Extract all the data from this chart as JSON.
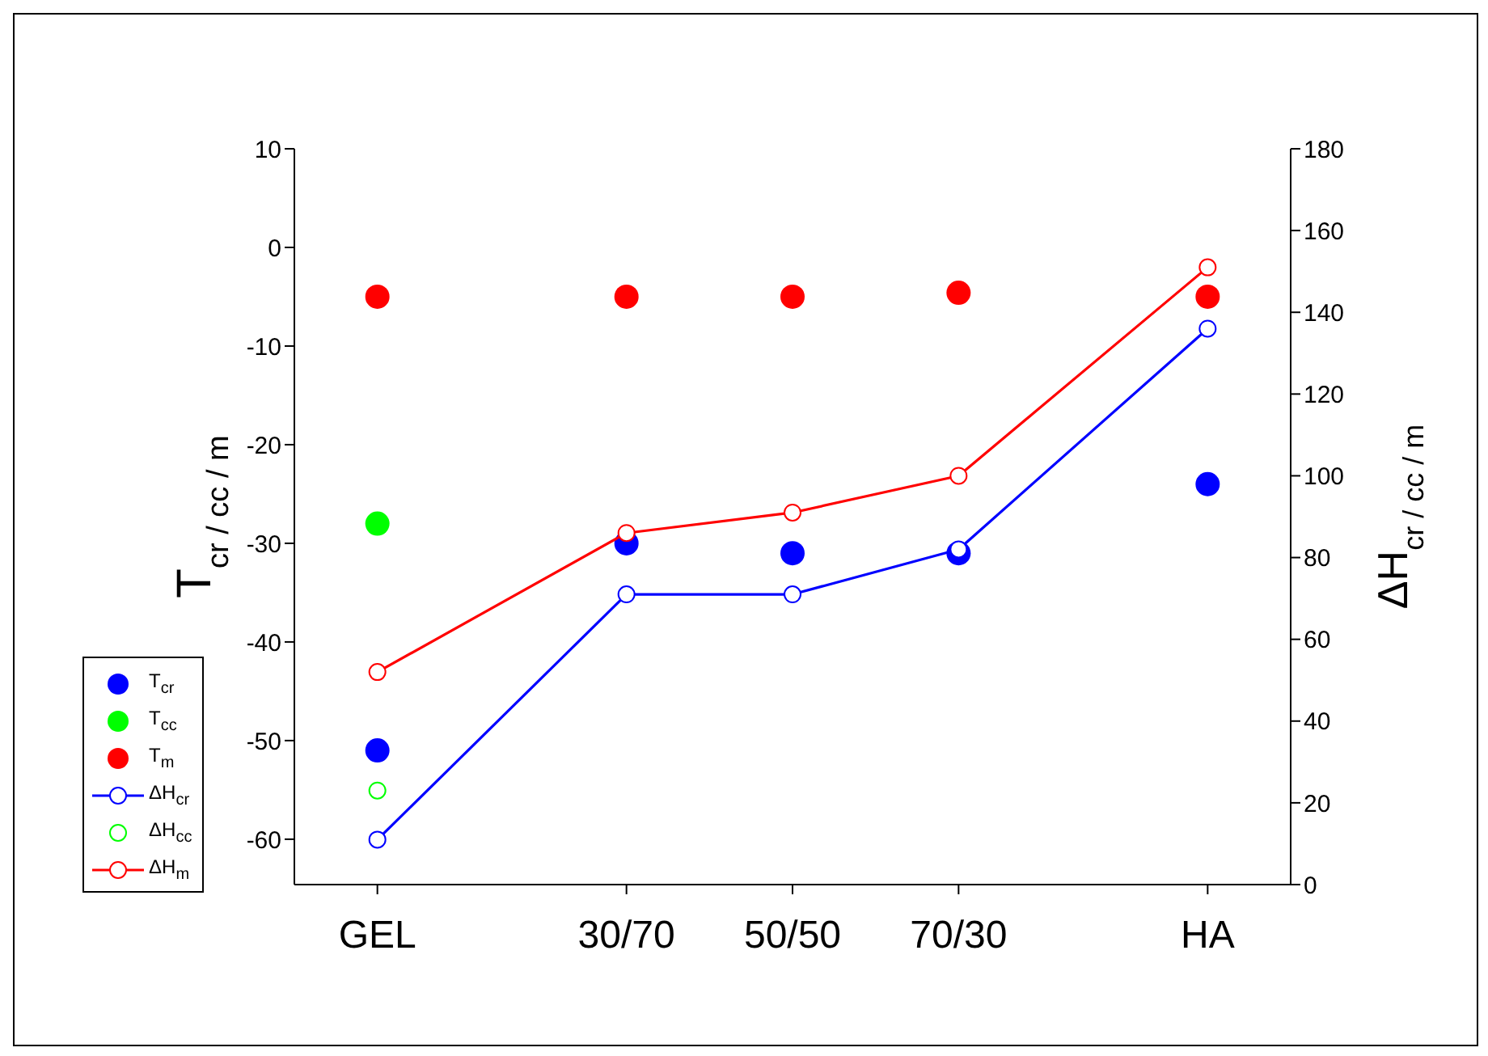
{
  "chart_data": {
    "type": "scatter",
    "categories": [
      "GEL",
      null,
      null,
      "30/70",
      null,
      "50/50",
      null,
      "70/30",
      null,
      null,
      "HA"
    ],
    "ylabel": "T$_{cr / cc / m}$",
    "y2label": "ΔH$_{cr / cc / m}$",
    "ylim": [
      -64.6,
      10
    ],
    "yticks": [
      -60,
      -50,
      -40,
      -30,
      -20,
      -10,
      0,
      10
    ],
    "y2lim": [
      0,
      180
    ],
    "y2ticks": [
      0,
      20,
      40,
      60,
      80,
      100,
      120,
      140,
      160,
      180
    ],
    "marker": "circle",
    "legend": "bottom left",
    "series": [
      {
        "name": "T$_{cr}$",
        "color": "#0000ff",
        "values": [
          -51,
          null,
          null,
          -30,
          null,
          -31,
          null,
          -31,
          null,
          null,
          -24
        ]
      },
      {
        "name": "T$_{cc}$",
        "color": "#00ff00",
        "values": [
          -28,
          null,
          null,
          null,
          null,
          null,
          null,
          null,
          null,
          null,
          null
        ]
      },
      {
        "name": "T$_{m}$",
        "color": "#ff0000",
        "values": [
          -5,
          null,
          null,
          -5,
          null,
          -5,
          null,
          -4.6,
          null,
          null,
          -5
        ]
      },
      {
        "name": "ΔH$_{cr}$",
        "type": "line",
        "axis": "y2",
        "color": "#0000ff",
        "values": [
          11,
          null,
          null,
          71,
          null,
          71,
          null,
          82,
          null,
          null,
          136
        ]
      },
      {
        "name": "ΔH$_{cc}$",
        "type": "line",
        "axis": "y2",
        "color": "#00ff00",
        "values": [
          23,
          null,
          null,
          null,
          null,
          null,
          null,
          null,
          null,
          null,
          null
        ]
      },
      {
        "name": "ΔH$_{m}$",
        "type": "line",
        "axis": "y2",
        "color": "#ff0000",
        "values": [
          52,
          null,
          null,
          86,
          null,
          91,
          null,
          100,
          null,
          null,
          151
        ]
      }
    ]
  }
}
